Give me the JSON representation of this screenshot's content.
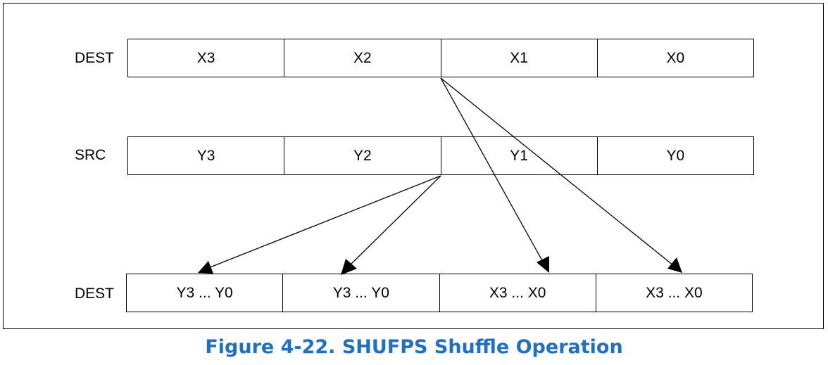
{
  "dest_row": {
    "label": "DEST",
    "cells": [
      "X3",
      "X2",
      "X1",
      "X0"
    ]
  },
  "src_row": {
    "label": "SRC",
    "cells": [
      "Y3",
      "Y2",
      "Y1",
      "Y0"
    ]
  },
  "result_row": {
    "label": "DEST",
    "cells": [
      "Y3 ... Y0",
      "Y3 ... Y0",
      "X3 ... X0",
      "X3 ... X0"
    ]
  },
  "caption": "Figure 4-22.  SHUFPS Shuffle Operation",
  "colors": {
    "caption": "#1f6fc5",
    "lines": "#000000"
  }
}
